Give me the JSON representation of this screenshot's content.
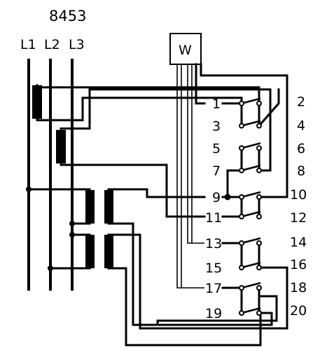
{
  "diagram_title": "8453",
  "phases": [
    "L1",
    "L2",
    "L3"
  ],
  "meter_label": "W",
  "terminals_left": [
    "1",
    "3",
    "5",
    "7",
    "9",
    "11",
    "13",
    "15",
    "17",
    "19"
  ],
  "terminals_right": [
    "2",
    "4",
    "6",
    "8",
    "10",
    "12",
    "14",
    "16",
    "18",
    "20"
  ]
}
